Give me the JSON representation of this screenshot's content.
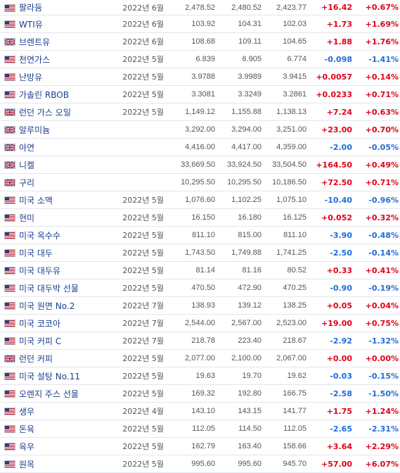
{
  "colors": {
    "up": "#e0001a",
    "down": "#1f6bd8",
    "link": "#1a3f8f"
  },
  "rows": [
    {
      "flag": "us-flag-icon",
      "name": "팔라듐",
      "month": "2022년 6월",
      "price": "2,478.52",
      "high": "2,480.52",
      "low": "2,423.77",
      "change": "+16.42",
      "pct": "+0.67%",
      "dir": "up"
    },
    {
      "flag": "us-flag-icon",
      "name": "WTI유",
      "month": "2022년 6월",
      "price": "103.92",
      "high": "104.31",
      "low": "102.03",
      "change": "+1.73",
      "pct": "+1.69%",
      "dir": "up"
    },
    {
      "flag": "uk-flag-icon",
      "name": "브렌트유",
      "month": "2022년 6월",
      "price": "108.68",
      "high": "109.11",
      "low": "104.65",
      "change": "+1.88",
      "pct": "+1.76%",
      "dir": "up"
    },
    {
      "flag": "us-flag-icon",
      "name": "천연가스",
      "month": "2022년 5월",
      "price": "6.839",
      "high": "6.905",
      "low": "6.774",
      "change": "-0.098",
      "pct": "-1.41%",
      "dir": "down"
    },
    {
      "flag": "us-flag-icon",
      "name": "난방유",
      "month": "2022년 5월",
      "price": "3.9788",
      "high": "3.9989",
      "low": "3.9415",
      "change": "+0.0057",
      "pct": "+0.14%",
      "dir": "up"
    },
    {
      "flag": "us-flag-icon",
      "name": "가솔린 RBOB",
      "month": "2022년 5월",
      "price": "3.3081",
      "high": "3.3249",
      "low": "3.2861",
      "change": "+0.0233",
      "pct": "+0.71%",
      "dir": "up"
    },
    {
      "flag": "uk-flag-icon",
      "name": "런던 가스 오일",
      "month": "2022년 5월",
      "price": "1,149.12",
      "high": "1,155.88",
      "low": "1,138.13",
      "change": "+7.24",
      "pct": "+0.63%",
      "dir": "up"
    },
    {
      "flag": "uk-flag-icon",
      "name": "알루미늄",
      "month": "",
      "price": "3,292.00",
      "high": "3,294.00",
      "low": "3,251.00",
      "change": "+23.00",
      "pct": "+0.70%",
      "dir": "up"
    },
    {
      "flag": "uk-flag-icon",
      "name": "아연",
      "month": "",
      "price": "4,416.00",
      "high": "4,417.00",
      "low": "4,359.00",
      "change": "-2.00",
      "pct": "-0.05%",
      "dir": "down"
    },
    {
      "flag": "uk-flag-icon",
      "name": "니켈",
      "month": "",
      "price": "33,669.50",
      "high": "33,924.50",
      "low": "33,504.50",
      "change": "+164.50",
      "pct": "+0.49%",
      "dir": "up"
    },
    {
      "flag": "uk-flag-icon",
      "name": "구리",
      "month": "",
      "price": "10,295.50",
      "high": "10,295.50",
      "low": "10,186.50",
      "change": "+72.50",
      "pct": "+0.71%",
      "dir": "up"
    },
    {
      "flag": "us-flag-icon",
      "name": "미국 소맥",
      "month": "2022년 5월",
      "price": "1,076.60",
      "high": "1,102.25",
      "low": "1,075.10",
      "change": "-10.40",
      "pct": "-0.96%",
      "dir": "down"
    },
    {
      "flag": "us-flag-icon",
      "name": "현미",
      "month": "2022년 5월",
      "price": "16.150",
      "high": "16.180",
      "low": "16.125",
      "change": "+0.052",
      "pct": "+0.32%",
      "dir": "up"
    },
    {
      "flag": "us-flag-icon",
      "name": "미국 옥수수",
      "month": "2022년 5월",
      "price": "811.10",
      "high": "815.00",
      "low": "811.10",
      "change": "-3.90",
      "pct": "-0.48%",
      "dir": "down"
    },
    {
      "flag": "us-flag-icon",
      "name": "미국 대두",
      "month": "2022년 5월",
      "price": "1,743.50",
      "high": "1,749.88",
      "low": "1,741.25",
      "change": "-2.50",
      "pct": "-0.14%",
      "dir": "down"
    },
    {
      "flag": "us-flag-icon",
      "name": "미국 대두유",
      "month": "2022년 5월",
      "price": "81.14",
      "high": "81.16",
      "low": "80.52",
      "change": "+0.33",
      "pct": "+0.41%",
      "dir": "up"
    },
    {
      "flag": "us-flag-icon",
      "name": "미국 대두박 선물",
      "month": "2022년 5월",
      "price": "470.50",
      "high": "472.90",
      "low": "470.25",
      "change": "-0.90",
      "pct": "-0.19%",
      "dir": "down"
    },
    {
      "flag": "us-flag-icon",
      "name": "미국 원면 No.2",
      "month": "2022년 7월",
      "price": "138.93",
      "high": "139.12",
      "low": "138.25",
      "change": "+0.05",
      "pct": "+0.04%",
      "dir": "up"
    },
    {
      "flag": "us-flag-icon",
      "name": "미국 코코아",
      "month": "2022년 7월",
      "price": "2,544.00",
      "high": "2,567.00",
      "low": "2,523.00",
      "change": "+19.00",
      "pct": "+0.75%",
      "dir": "up"
    },
    {
      "flag": "us-flag-icon",
      "name": "미국 커피 C",
      "month": "2022년 7월",
      "price": "218.78",
      "high": "223.40",
      "low": "218.67",
      "change": "-2.92",
      "pct": "-1.32%",
      "dir": "down"
    },
    {
      "flag": "uk-flag-icon",
      "name": "런던 커피",
      "month": "2022년 5월",
      "price": "2,077.00",
      "high": "2,100.00",
      "low": "2,067.00",
      "change": "+0.00",
      "pct": "+0.00%",
      "dir": "up"
    },
    {
      "flag": "us-flag-icon",
      "name": "미국 설탕 No.11",
      "month": "2022년 5월",
      "price": "19.63",
      "high": "19.70",
      "low": "19.62",
      "change": "-0.03",
      "pct": "-0.15%",
      "dir": "down"
    },
    {
      "flag": "us-flag-icon",
      "name": "오렌지 주스 선물",
      "month": "2022년 5월",
      "price": "169.32",
      "high": "192.80",
      "low": "166.75",
      "change": "-2.58",
      "pct": "-1.50%",
      "dir": "down"
    },
    {
      "flag": "us-flag-icon",
      "name": "생우",
      "month": "2022년 4월",
      "price": "143.10",
      "high": "143.15",
      "low": "141.77",
      "change": "+1.75",
      "pct": "+1.24%",
      "dir": "up"
    },
    {
      "flag": "us-flag-icon",
      "name": "돈육",
      "month": "2022년 5월",
      "price": "112.05",
      "high": "114.50",
      "low": "112.05",
      "change": "-2.65",
      "pct": "-2.31%",
      "dir": "down"
    },
    {
      "flag": "us-flag-icon",
      "name": "육우",
      "month": "2022년 5월",
      "price": "162.79",
      "high": "163.40",
      "low": "158.66",
      "change": "+3.64",
      "pct": "+2.29%",
      "dir": "up"
    },
    {
      "flag": "us-flag-icon",
      "name": "원목",
      "month": "2022년 5월",
      "price": "995.60",
      "high": "995.60",
      "low": "945.70",
      "change": "+57.00",
      "pct": "+6.07%",
      "dir": "up"
    }
  ]
}
